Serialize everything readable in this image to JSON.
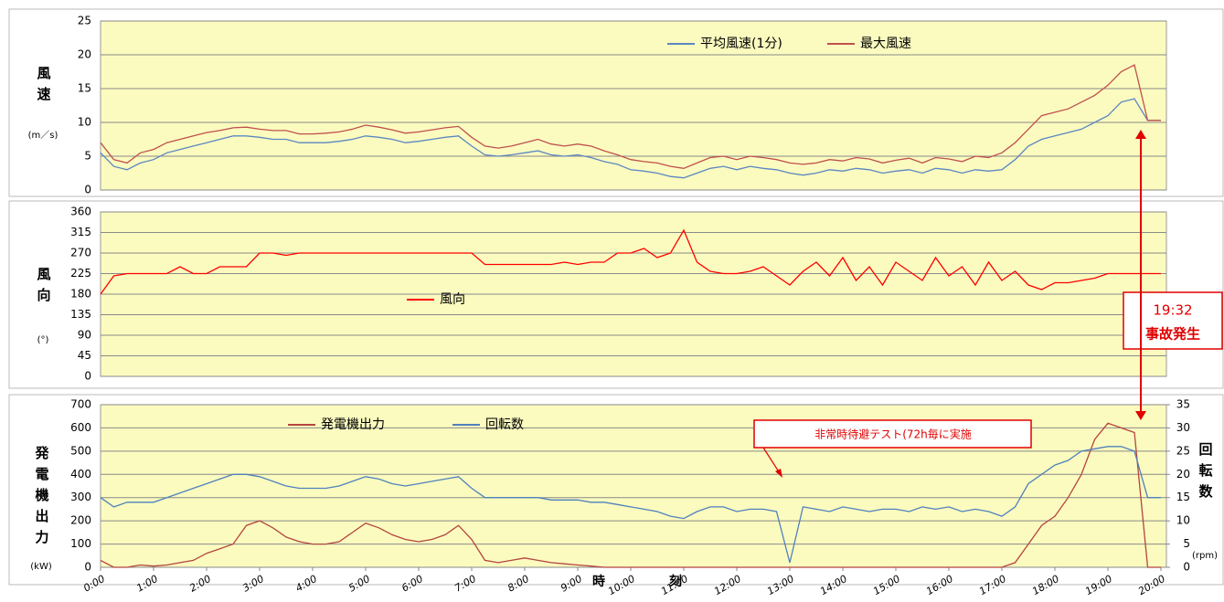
{
  "chart_data": [
    {
      "type": "line",
      "ylabel": "風速",
      "yunit": "(m／s)",
      "xlim": [
        0,
        20
      ],
      "ylim": [
        0,
        25
      ],
      "yticks": [
        0,
        5,
        10,
        15,
        20,
        25
      ],
      "grid": true,
      "x": [
        0,
        0.25,
        0.5,
        0.75,
        1,
        1.25,
        1.5,
        1.75,
        2,
        2.25,
        2.5,
        2.75,
        3,
        3.25,
        3.5,
        3.75,
        4,
        4.25,
        4.5,
        4.75,
        5,
        5.25,
        5.5,
        5.75,
        6,
        6.25,
        6.5,
        6.75,
        7,
        7.25,
        7.5,
        7.75,
        8,
        8.25,
        8.5,
        8.75,
        9,
        9.25,
        9.5,
        9.75,
        10,
        10.25,
        10.5,
        10.75,
        11,
        11.25,
        11.5,
        11.75,
        12,
        12.25,
        12.5,
        12.75,
        13,
        13.25,
        13.5,
        13.75,
        14,
        14.25,
        14.5,
        14.75,
        15,
        15.25,
        15.5,
        15.75,
        16,
        16.25,
        16.5,
        16.75,
        17,
        17.25,
        17.5,
        17.75,
        18,
        18.25,
        18.5,
        18.75,
        19,
        19.25,
        19.5,
        19.75,
        20
      ],
      "series": [
        {
          "name": "平均風速(1分)",
          "color": "#5b86c2",
          "values": [
            5.5,
            3.5,
            3,
            4,
            4.5,
            5.5,
            6,
            6.5,
            7,
            7.5,
            8,
            8,
            7.8,
            7.5,
            7.5,
            7,
            7,
            7,
            7.2,
            7.5,
            8,
            7.8,
            7.5,
            7,
            7.2,
            7.5,
            7.8,
            8,
            6.5,
            5.2,
            5,
            5.2,
            5.5,
            5.8,
            5.2,
            5,
            5.2,
            4.8,
            4.2,
            3.8,
            3,
            2.8,
            2.5,
            2,
            1.8,
            2.5,
            3.2,
            3.5,
            3,
            3.5,
            3.2,
            3,
            2.5,
            2.2,
            2.5,
            3,
            2.8,
            3.2,
            3,
            2.5,
            2.8,
            3,
            2.5,
            3.2,
            3,
            2.5,
            3,
            2.8,
            3,
            4.5,
            6.5,
            7.5,
            8,
            8.5,
            9,
            10,
            11,
            13,
            13.5,
            10.3,
            10.3
          ]
        },
        {
          "name": "最大風速",
          "color": "#c0504d",
          "values": [
            7,
            4.5,
            4,
            5.5,
            6,
            7,
            7.5,
            8,
            8.5,
            8.8,
            9.2,
            9.3,
            9,
            8.8,
            8.8,
            8.3,
            8.3,
            8.4,
            8.6,
            9,
            9.6,
            9.3,
            8.9,
            8.4,
            8.6,
            8.9,
            9.2,
            9.4,
            7.8,
            6.5,
            6.2,
            6.5,
            7,
            7.5,
            6.8,
            6.5,
            6.8,
            6.5,
            5.8,
            5.2,
            4.5,
            4.2,
            4,
            3.5,
            3.2,
            4,
            4.8,
            5,
            4.5,
            5,
            4.8,
            4.5,
            4,
            3.8,
            4,
            4.5,
            4.3,
            4.8,
            4.6,
            4,
            4.4,
            4.7,
            4,
            4.8,
            4.6,
            4.2,
            5,
            4.8,
            5.5,
            7,
            9,
            11,
            11.5,
            12,
            13,
            14,
            15.5,
            17.5,
            18.5,
            10.3,
            10.3
          ]
        }
      ]
    },
    {
      "type": "line",
      "ylabel": "風向",
      "yunit": "(°)",
      "xlim": [
        0,
        20
      ],
      "ylim": [
        0,
        360
      ],
      "yticks": [
        0,
        45,
        90,
        135,
        180,
        225,
        270,
        315,
        360
      ],
      "grid": true,
      "x": [
        0,
        0.25,
        0.5,
        0.75,
        1,
        1.25,
        1.5,
        1.75,
        2,
        2.25,
        2.5,
        2.75,
        3,
        3.25,
        3.5,
        3.75,
        4,
        4.25,
        4.5,
        4.75,
        5,
        5.25,
        5.5,
        5.75,
        6,
        6.25,
        6.5,
        6.75,
        7,
        7.25,
        7.5,
        7.75,
        8,
        8.25,
        8.5,
        8.75,
        9,
        9.25,
        9.5,
        9.75,
        10,
        10.25,
        10.5,
        10.75,
        11,
        11.25,
        11.5,
        11.75,
        12,
        12.25,
        12.5,
        12.75,
        13,
        13.25,
        13.5,
        13.75,
        14,
        14.25,
        14.5,
        14.75,
        15,
        15.25,
        15.5,
        15.75,
        16,
        16.25,
        16.5,
        16.75,
        17,
        17.25,
        17.5,
        17.75,
        18,
        18.25,
        18.5,
        18.75,
        19,
        19.25,
        19.5,
        19.75,
        20
      ],
      "series": [
        {
          "name": "風向",
          "color": "#ff0000",
          "values": [
            180,
            220,
            225,
            225,
            225,
            225,
            240,
            225,
            225,
            240,
            240,
            240,
            270,
            270,
            265,
            270,
            270,
            270,
            270,
            270,
            270,
            270,
            270,
            270,
            270,
            270,
            270,
            270,
            270,
            245,
            245,
            245,
            245,
            245,
            245,
            250,
            245,
            250,
            250,
            270,
            270,
            280,
            260,
            270,
            320,
            250,
            230,
            225,
            225,
            230,
            240,
            220,
            200,
            230,
            250,
            220,
            260,
            210,
            240,
            200,
            250,
            230,
            210,
            260,
            220,
            240,
            200,
            250,
            210,
            230,
            200,
            190,
            205,
            205,
            210,
            215,
            225,
            225,
            225,
            225,
            225
          ]
        }
      ]
    },
    {
      "type": "line",
      "ylabel": "発電機出力",
      "yunit": "(kW)",
      "y2label": "回転数",
      "y2unit": "(rpm)",
      "xlabel": "時刻",
      "xlim": [
        0,
        20
      ],
      "ylim": [
        0,
        700
      ],
      "yticks": [
        0,
        100,
        200,
        300,
        400,
        500,
        600,
        700
      ],
      "y2lim": [
        0,
        35
      ],
      "y2ticks": [
        0,
        5,
        10,
        15,
        20,
        25,
        30,
        35
      ],
      "grid": true,
      "xticks": [
        {
          "value": 0,
          "label": "0:00"
        },
        {
          "value": 1,
          "label": "1:00"
        },
        {
          "value": 2,
          "label": "2:00"
        },
        {
          "value": 3,
          "label": "3:00"
        },
        {
          "value": 4,
          "label": "4:00"
        },
        {
          "value": 5,
          "label": "5:00"
        },
        {
          "value": 6,
          "label": "6:00"
        },
        {
          "value": 7,
          "label": "7:00"
        },
        {
          "value": 8,
          "label": "8:00"
        },
        {
          "value": 9,
          "label": "9:00"
        },
        {
          "value": 10,
          "label": "10:00"
        },
        {
          "value": 11,
          "label": "11:00"
        },
        {
          "value": 12,
          "label": "12:00"
        },
        {
          "value": 13,
          "label": "13:00"
        },
        {
          "value": 14,
          "label": "14:00"
        },
        {
          "value": 15,
          "label": "15:00"
        },
        {
          "value": 16,
          "label": "16:00"
        },
        {
          "value": 17,
          "label": "17:00"
        },
        {
          "value": 18,
          "label": "18:00"
        },
        {
          "value": 19,
          "label": "19:00"
        },
        {
          "value": 20,
          "label": "20:00"
        }
      ],
      "x": [
        0,
        0.25,
        0.5,
        0.75,
        1,
        1.25,
        1.5,
        1.75,
        2,
        2.25,
        2.5,
        2.75,
        3,
        3.25,
        3.5,
        3.75,
        4,
        4.25,
        4.5,
        4.75,
        5,
        5.25,
        5.5,
        5.75,
        6,
        6.25,
        6.5,
        6.75,
        7,
        7.25,
        7.5,
        7.75,
        8,
        8.25,
        8.5,
        8.75,
        9,
        9.25,
        9.5,
        9.75,
        10,
        10.25,
        10.5,
        10.75,
        11,
        11.25,
        11.5,
        11.75,
        12,
        12.25,
        12.5,
        12.75,
        13,
        13.25,
        13.5,
        13.75,
        14,
        14.25,
        14.5,
        14.75,
        15,
        15.25,
        15.5,
        15.75,
        16,
        16.25,
        16.5,
        16.75,
        17,
        17.25,
        17.5,
        17.75,
        18,
        18.25,
        18.5,
        18.75,
        19,
        19.25,
        19.5,
        19.75,
        20
      ],
      "series": [
        {
          "name": "発電機出力",
          "color": "#b5443f",
          "values": [
            30,
            0,
            0,
            10,
            5,
            10,
            20,
            30,
            60,
            80,
            100,
            180,
            200,
            170,
            130,
            110,
            100,
            100,
            110,
            150,
            190,
            170,
            140,
            120,
            110,
            120,
            140,
            180,
            120,
            30,
            20,
            30,
            40,
            30,
            20,
            15,
            10,
            5,
            0,
            0,
            0,
            0,
            0,
            0,
            0,
            0,
            0,
            0,
            0,
            0,
            0,
            0,
            0,
            0,
            0,
            0,
            0,
            0,
            0,
            0,
            0,
            0,
            0,
            0,
            0,
            0,
            0,
            0,
            0,
            20,
            100,
            180,
            220,
            300,
            400,
            550,
            620,
            600,
            580,
            0,
            0
          ]
        },
        {
          "name": "回転数",
          "color": "#4f81bd",
          "axis": "y2",
          "values": [
            15,
            13,
            14,
            14,
            14,
            15,
            16,
            17,
            18,
            19,
            20,
            20,
            19.5,
            18.5,
            17.5,
            17,
            17,
            17,
            17.5,
            18.5,
            19.5,
            19,
            18,
            17.5,
            18,
            18.5,
            19,
            19.5,
            17,
            15,
            15,
            15,
            15,
            15,
            14.5,
            14.5,
            14.5,
            14,
            14,
            13.5,
            13,
            12.5,
            12,
            11,
            10.5,
            12,
            13,
            13,
            12,
            12.5,
            12.5,
            12,
            1,
            13,
            12.5,
            12,
            13,
            12.5,
            12,
            12.5,
            12.5,
            12,
            13,
            12.5,
            13,
            12,
            12.5,
            12,
            11,
            13,
            18,
            20,
            22,
            23,
            25,
            25.5,
            26,
            26,
            25,
            15,
            15
          ]
        }
      ]
    }
  ],
  "annotations": {
    "event_time": "19:32",
    "event_label": "事故発生",
    "test_label": "非常時待避テスト(72h毎に実施"
  }
}
